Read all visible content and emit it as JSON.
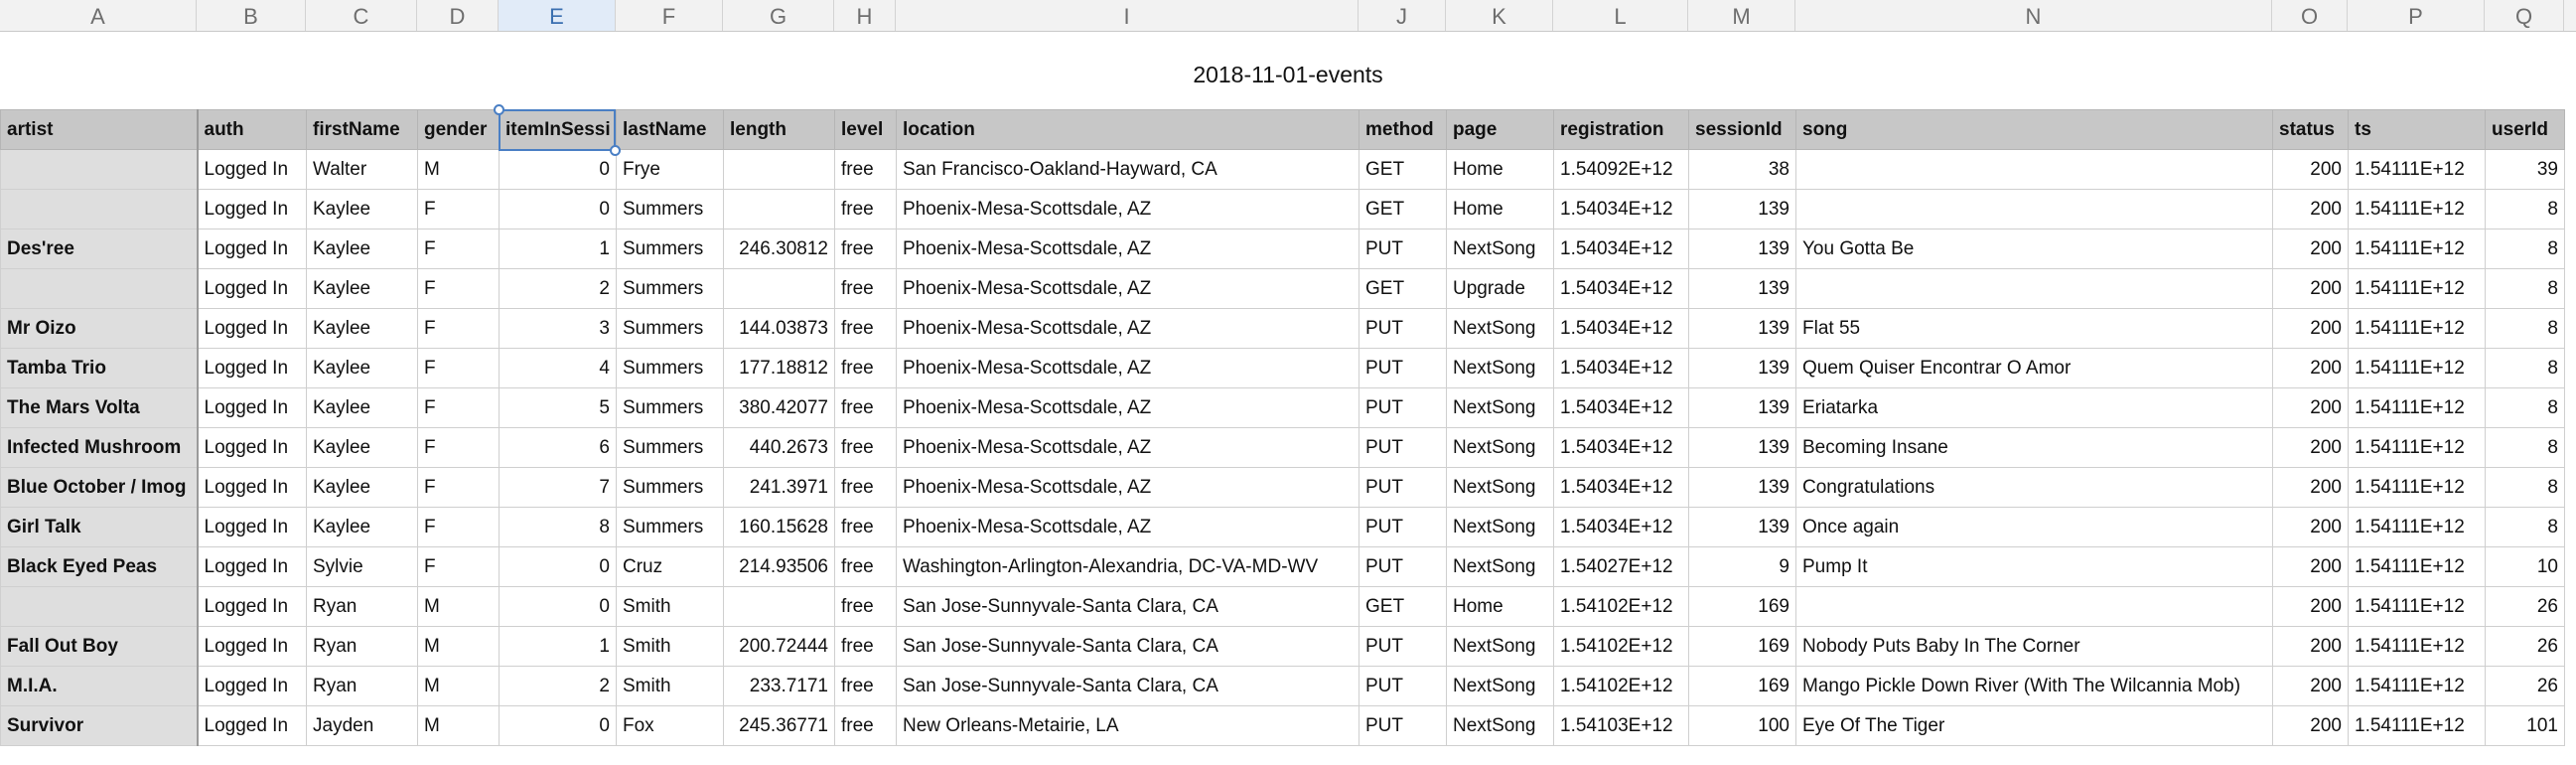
{
  "sheet_title": "2018-11-01-events",
  "column_letters": [
    "A",
    "B",
    "C",
    "D",
    "E",
    "F",
    "G",
    "H",
    "I",
    "J",
    "K",
    "L",
    "M",
    "N",
    "O",
    "P",
    "Q"
  ],
  "active_column": "E",
  "headers": [
    "artist",
    "auth",
    "firstName",
    "gender",
    "itemInSessi",
    "lastName",
    "length",
    "level",
    "location",
    "method",
    "page",
    "registration",
    "sessionId",
    "song",
    "status",
    "ts",
    "userId"
  ],
  "rows": [
    [
      "",
      "Logged In",
      "Walter",
      "M",
      "0",
      "Frye",
      "",
      "free",
      "San Francisco-Oakland-Hayward, CA",
      "GET",
      "Home",
      "1.54092E+12",
      "38",
      "",
      "200",
      "1.54111E+12",
      "39"
    ],
    [
      "",
      "Logged In",
      "Kaylee",
      "F",
      "0",
      "Summers",
      "",
      "free",
      "Phoenix-Mesa-Scottsdale, AZ",
      "GET",
      "Home",
      "1.54034E+12",
      "139",
      "",
      "200",
      "1.54111E+12",
      "8"
    ],
    [
      "Des'ree",
      "Logged In",
      "Kaylee",
      "F",
      "1",
      "Summers",
      "246.30812",
      "free",
      "Phoenix-Mesa-Scottsdale, AZ",
      "PUT",
      "NextSong",
      "1.54034E+12",
      "139",
      "You Gotta Be",
      "200",
      "1.54111E+12",
      "8"
    ],
    [
      "",
      "Logged In",
      "Kaylee",
      "F",
      "2",
      "Summers",
      "",
      "free",
      "Phoenix-Mesa-Scottsdale, AZ",
      "GET",
      "Upgrade",
      "1.54034E+12",
      "139",
      "",
      "200",
      "1.54111E+12",
      "8"
    ],
    [
      "Mr Oizo",
      "Logged In",
      "Kaylee",
      "F",
      "3",
      "Summers",
      "144.03873",
      "free",
      "Phoenix-Mesa-Scottsdale, AZ",
      "PUT",
      "NextSong",
      "1.54034E+12",
      "139",
      "Flat 55",
      "200",
      "1.54111E+12",
      "8"
    ],
    [
      "Tamba Trio",
      "Logged In",
      "Kaylee",
      "F",
      "4",
      "Summers",
      "177.18812",
      "free",
      "Phoenix-Mesa-Scottsdale, AZ",
      "PUT",
      "NextSong",
      "1.54034E+12",
      "139",
      "Quem Quiser Encontrar O Amor",
      "200",
      "1.54111E+12",
      "8"
    ],
    [
      "The Mars Volta",
      "Logged In",
      "Kaylee",
      "F",
      "5",
      "Summers",
      "380.42077",
      "free",
      "Phoenix-Mesa-Scottsdale, AZ",
      "PUT",
      "NextSong",
      "1.54034E+12",
      "139",
      "Eriatarka",
      "200",
      "1.54111E+12",
      "8"
    ],
    [
      "Infected Mushroom",
      "Logged In",
      "Kaylee",
      "F",
      "6",
      "Summers",
      "440.2673",
      "free",
      "Phoenix-Mesa-Scottsdale, AZ",
      "PUT",
      "NextSong",
      "1.54034E+12",
      "139",
      "Becoming Insane",
      "200",
      "1.54111E+12",
      "8"
    ],
    [
      "Blue October / Imog",
      "Logged In",
      "Kaylee",
      "F",
      "7",
      "Summers",
      "241.3971",
      "free",
      "Phoenix-Mesa-Scottsdale, AZ",
      "PUT",
      "NextSong",
      "1.54034E+12",
      "139",
      "Congratulations",
      "200",
      "1.54111E+12",
      "8"
    ],
    [
      "Girl Talk",
      "Logged In",
      "Kaylee",
      "F",
      "8",
      "Summers",
      "160.15628",
      "free",
      "Phoenix-Mesa-Scottsdale, AZ",
      "PUT",
      "NextSong",
      "1.54034E+12",
      "139",
      "Once again",
      "200",
      "1.54111E+12",
      "8"
    ],
    [
      "Black Eyed Peas",
      "Logged In",
      "Sylvie",
      "F",
      "0",
      "Cruz",
      "214.93506",
      "free",
      "Washington-Arlington-Alexandria, DC-VA-MD-WV",
      "PUT",
      "NextSong",
      "1.54027E+12",
      "9",
      "Pump It",
      "200",
      "1.54111E+12",
      "10"
    ],
    [
      "",
      "Logged In",
      "Ryan",
      "M",
      "0",
      "Smith",
      "",
      "free",
      "San Jose-Sunnyvale-Santa Clara, CA",
      "GET",
      "Home",
      "1.54102E+12",
      "169",
      "",
      "200",
      "1.54111E+12",
      "26"
    ],
    [
      "Fall Out Boy",
      "Logged In",
      "Ryan",
      "M",
      "1",
      "Smith",
      "200.72444",
      "free",
      "San Jose-Sunnyvale-Santa Clara, CA",
      "PUT",
      "NextSong",
      "1.54102E+12",
      "169",
      "Nobody Puts Baby In The Corner",
      "200",
      "1.54111E+12",
      "26"
    ],
    [
      "M.I.A.",
      "Logged In",
      "Ryan",
      "M",
      "2",
      "Smith",
      "233.7171",
      "free",
      "San Jose-Sunnyvale-Santa Clara, CA",
      "PUT",
      "NextSong",
      "1.54102E+12",
      "169",
      "Mango Pickle Down River (With The Wilcannia Mob)",
      "200",
      "1.54111E+12",
      "26"
    ],
    [
      "Survivor",
      "Logged In",
      "Jayden",
      "M",
      "0",
      "Fox",
      "245.36771",
      "free",
      "New Orleans-Metairie, LA",
      "PUT",
      "NextSong",
      "1.54103E+12",
      "100",
      "Eye Of The Tiger",
      "200",
      "1.54111E+12",
      "101"
    ]
  ]
}
